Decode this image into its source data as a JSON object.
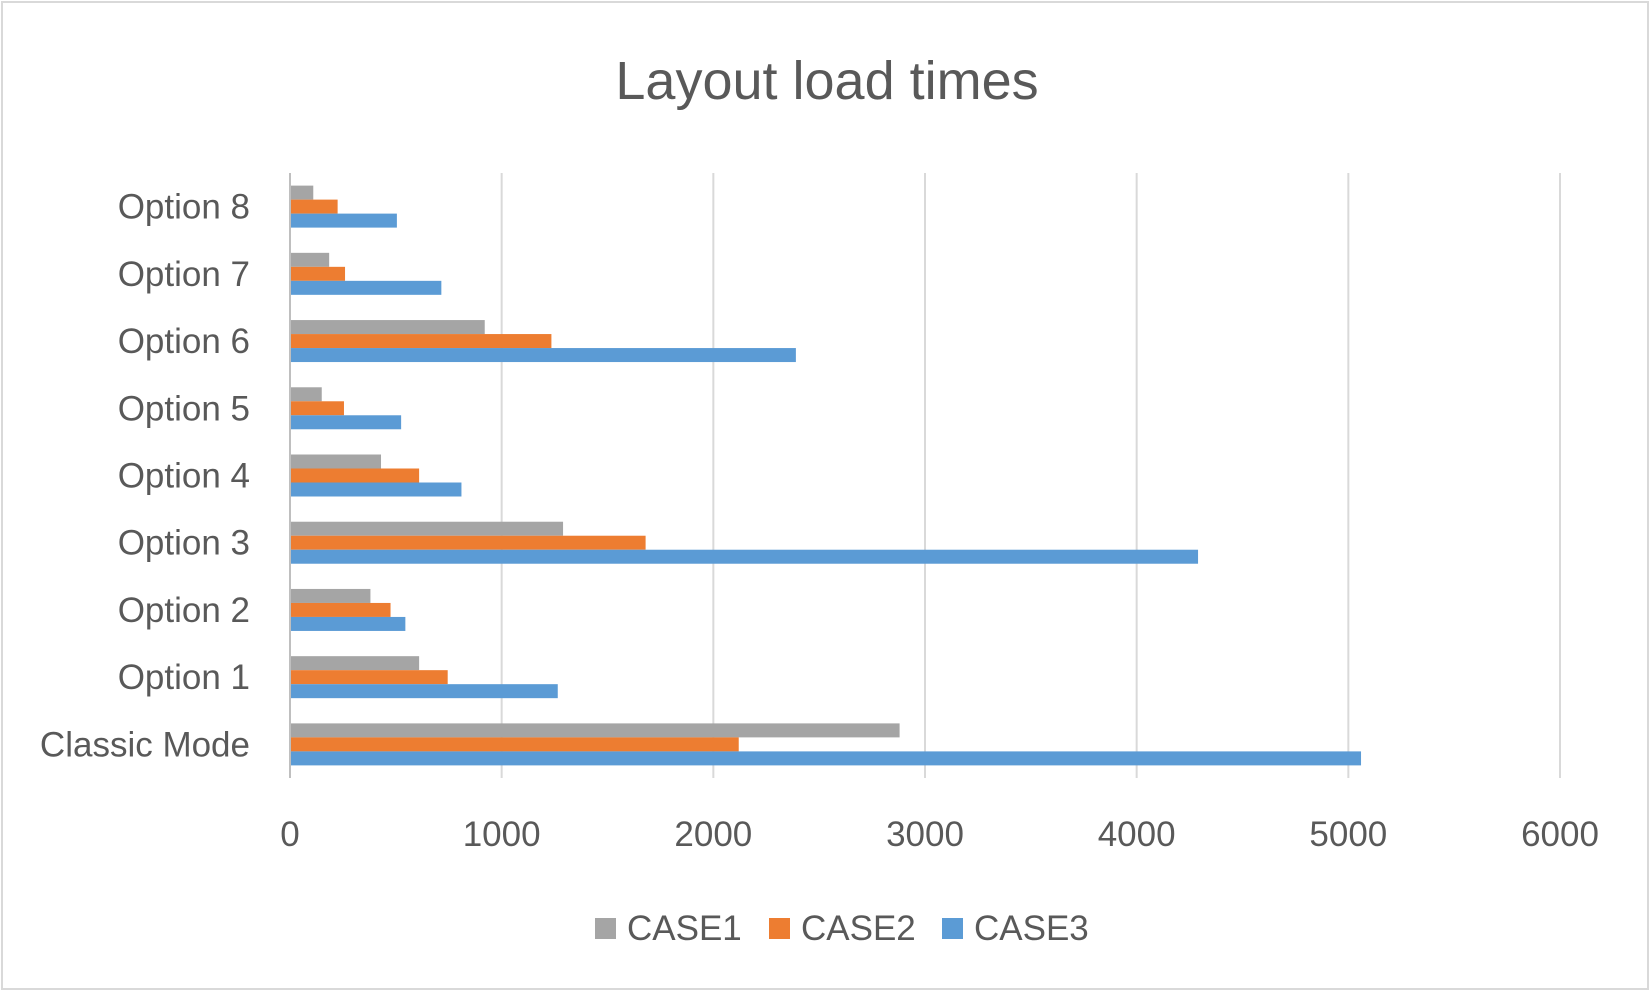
{
  "chart_data": {
    "type": "bar",
    "orientation": "horizontal",
    "title": "Layout load times",
    "xlabel": "",
    "ylabel": "",
    "categories": [
      "Classic Mode",
      "Option 1",
      "Option 2",
      "Option 3",
      "Option 4",
      "Option 5",
      "Option 6",
      "Option 7",
      "Option 8"
    ],
    "series": [
      {
        "name": "CASE1",
        "color": "#a5a5a5",
        "values": [
          2880,
          610,
          380,
          1290,
          430,
          150,
          920,
          185,
          110
        ]
      },
      {
        "name": "CASE2",
        "color": "#ed7d31",
        "values": [
          2120,
          745,
          475,
          1680,
          610,
          255,
          1235,
          260,
          225
        ]
      },
      {
        "name": "CASE3",
        "color": "#5b9bd5",
        "values": [
          5060,
          1265,
          545,
          4290,
          810,
          525,
          2390,
          715,
          505
        ]
      }
    ],
    "xlim": [
      0,
      6000
    ],
    "xticks": [
      "0",
      "1000",
      "2000",
      "3000",
      "4000",
      "5000",
      "6000"
    ],
    "grid": "vertical major gridlines",
    "legend_position": "bottom"
  }
}
